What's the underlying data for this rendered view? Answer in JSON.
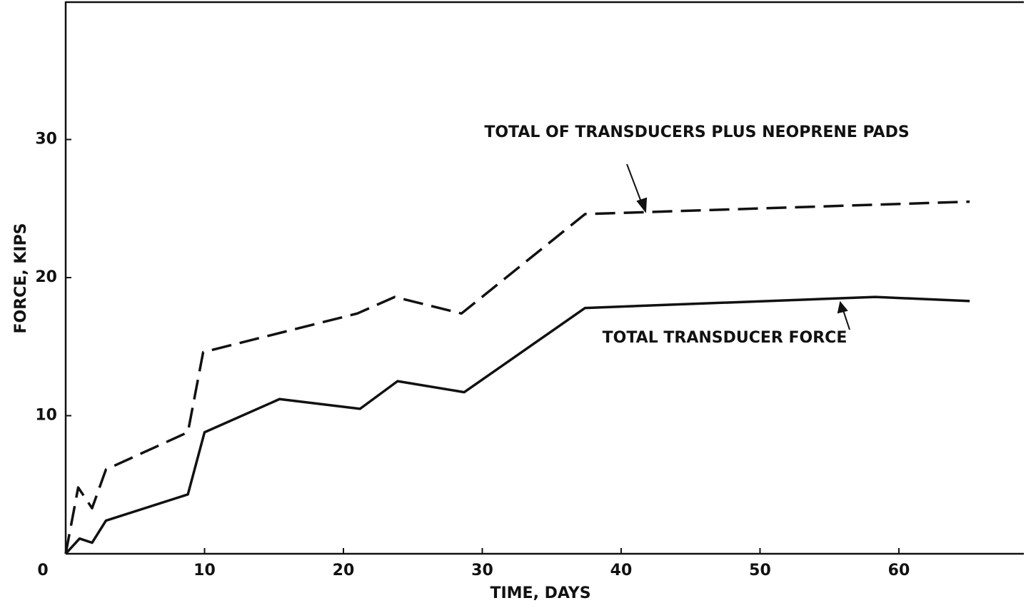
{
  "chart_data": {
    "type": "line",
    "xlabel": "TIME, DAYS",
    "ylabel": "FORCE, KIPS",
    "xlim": [
      0,
      69
    ],
    "ylim": [
      0,
      40
    ],
    "xticks": [
      0,
      10,
      20,
      30,
      40,
      50,
      60
    ],
    "yticks": [
      10,
      20,
      30
    ],
    "series": [
      {
        "name": "TOTAL OF TRANSDUCERS PLUS NEOPRENE PADS",
        "color": "#111111",
        "dash": true,
        "x": [
          0,
          0.9,
          1.9,
          2.9,
          8.8,
          9.9,
          21.0,
          23.7,
          28.5,
          37.4,
          65.1
        ],
        "values": [
          0,
          4.8,
          3.3,
          6.1,
          8.8,
          14.6,
          17.4,
          18.6,
          17.4,
          24.6,
          25.5
        ]
      },
      {
        "name": "TOTAL TRANSDUCER FORCE",
        "color": "#111111",
        "dash": false,
        "x": [
          0,
          1.0,
          1.9,
          2.9,
          8.8,
          10.0,
          15.4,
          21.2,
          23.9,
          28.7,
          37.4,
          58.3,
          65.1
        ],
        "values": [
          0,
          1.1,
          0.8,
          2.4,
          4.3,
          8.8,
          11.2,
          10.5,
          12.5,
          11.7,
          17.8,
          18.6,
          18.3
        ]
      }
    ]
  }
}
